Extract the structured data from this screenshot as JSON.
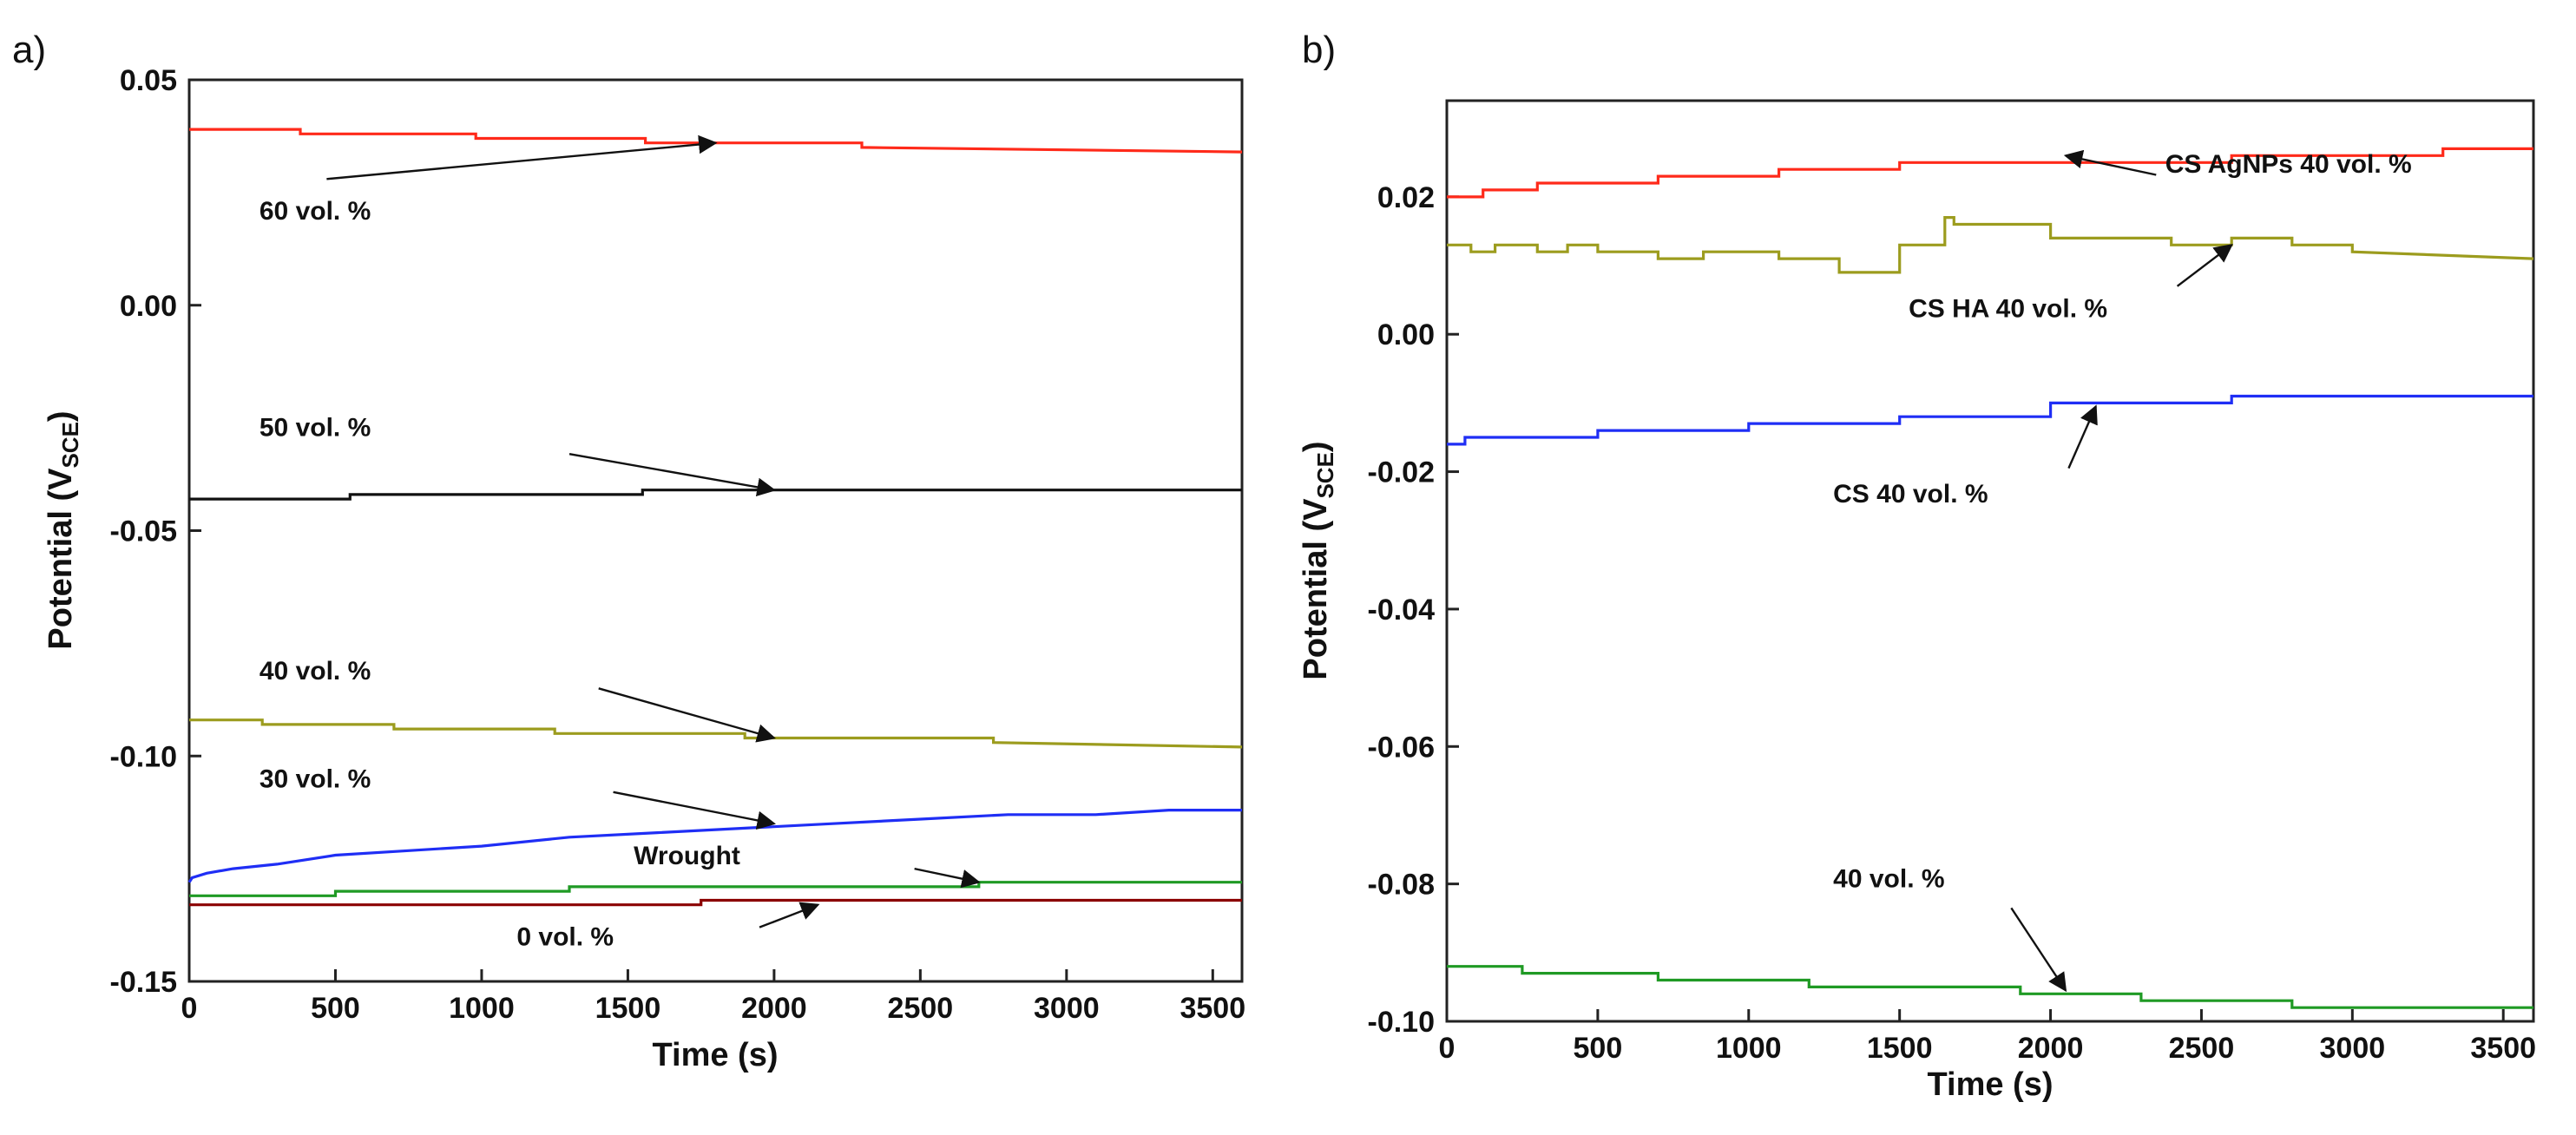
{
  "chart_data": [
    {
      "panel": "a)",
      "type": "line",
      "xlabel": "Time (s)",
      "ylabel": {
        "main": "Potential (V",
        "sub": "SCE",
        "close": ")"
      },
      "xlim": [
        0,
        3600
      ],
      "ylim": [
        -0.15,
        0.05
      ],
      "xticks": [
        {
          "v": 0,
          "label": "0"
        },
        {
          "v": 500,
          "label": "500"
        },
        {
          "v": 1000,
          "label": "1000"
        },
        {
          "v": 1500,
          "label": "1500"
        },
        {
          "v": 2000,
          "label": "2000"
        },
        {
          "v": 2500,
          "label": "2500"
        },
        {
          "v": 3000,
          "label": "3000"
        },
        {
          "v": 3500,
          "label": "3500"
        }
      ],
      "yticks": [
        {
          "v": 0.05,
          "label": "0.05"
        },
        {
          "v": 0.0,
          "label": "0.00"
        },
        {
          "v": -0.05,
          "label": "-0.05"
        },
        {
          "v": -0.1,
          "label": "-0.10"
        },
        {
          "v": -0.15,
          "label": "-0.15"
        }
      ],
      "series": [
        {
          "name": "60 vol. %",
          "color": "#ff2a1a",
          "x": [
            0,
            380,
            380,
            980,
            980,
            1560,
            1560,
            2300,
            2300,
            3600
          ],
          "y": [
            0.039,
            0.039,
            0.038,
            0.038,
            0.037,
            0.037,
            0.036,
            0.036,
            0.035,
            0.034
          ]
        },
        {
          "name": "50 vol. %",
          "color": "#111111",
          "x": [
            0,
            550,
            550,
            1550,
            1550,
            3600
          ],
          "y": [
            -0.043,
            -0.043,
            -0.042,
            -0.042,
            -0.041,
            -0.041
          ]
        },
        {
          "name": "40 vol. %",
          "color": "#9c9c1e",
          "x": [
            0,
            250,
            250,
            700,
            700,
            1250,
            1250,
            1900,
            1900,
            2750,
            2750,
            3600
          ],
          "y": [
            -0.092,
            -0.092,
            -0.093,
            -0.093,
            -0.094,
            -0.094,
            -0.095,
            -0.095,
            -0.096,
            -0.096,
            -0.097,
            -0.098
          ]
        },
        {
          "name": "30 vol. %",
          "color": "#1f2ef5",
          "x": [
            0,
            10,
            60,
            150,
            300,
            500,
            750,
            1000,
            1300,
            1600,
            1900,
            2200,
            2500,
            2800,
            3100,
            3350,
            3600
          ],
          "y": [
            -0.128,
            -0.127,
            -0.126,
            -0.125,
            -0.124,
            -0.122,
            -0.121,
            -0.12,
            -0.118,
            -0.117,
            -0.116,
            -0.115,
            -0.114,
            -0.113,
            -0.113,
            -0.112,
            -0.112
          ]
        },
        {
          "name": "Wrought",
          "color": "#1f9a24",
          "x": [
            0,
            500,
            500,
            1300,
            1300,
            2700,
            2700,
            3600
          ],
          "y": [
            -0.131,
            -0.131,
            -0.13,
            -0.13,
            -0.129,
            -0.129,
            -0.128,
            -0.128
          ]
        },
        {
          "name": "0 vol. %",
          "color": "#8b0000",
          "x": [
            0,
            1750,
            1750,
            3600
          ],
          "y": [
            -0.133,
            -0.133,
            -0.132,
            -0.132
          ]
        }
      ],
      "annotations": [
        {
          "text": "60 vol. %",
          "tx": 240,
          "ty": 0.019,
          "ax": 470,
          "ay": 0.028,
          "hx": 1800,
          "hy": 0.036
        },
        {
          "text": "50 vol. %",
          "tx": 240,
          "ty": -0.029,
          "ax": 1300,
          "ay": -0.033,
          "hx": 2000,
          "hy": -0.041
        },
        {
          "text": "40 vol. %",
          "tx": 240,
          "ty": -0.083,
          "ax": 1400,
          "ay": -0.085,
          "hx": 2000,
          "hy": -0.096
        },
        {
          "text": "30 vol. %",
          "tx": 240,
          "ty": -0.107,
          "ax": 1450,
          "ay": -0.108,
          "hx": 2000,
          "hy": -0.115
        },
        {
          "text": "Wrought",
          "tx": 1520,
          "ty": -0.124,
          "ax": 2480,
          "ay": -0.125,
          "hx": 2700,
          "hy": -0.128
        },
        {
          "text": "0 vol. %",
          "tx": 1120,
          "ty": -0.142,
          "ax": 1950,
          "ay": -0.138,
          "hx": 2150,
          "hy": -0.133
        }
      ]
    },
    {
      "panel": "b)",
      "type": "line",
      "xlabel": "Time (s)",
      "ylabel": {
        "main": "Potential (V",
        "sub": "SCE",
        "close": ")"
      },
      "xlim": [
        0,
        3600
      ],
      "ylim": [
        -0.1,
        0.034
      ],
      "xticks": [
        {
          "v": 0,
          "label": "0"
        },
        {
          "v": 500,
          "label": "500"
        },
        {
          "v": 1000,
          "label": "1000"
        },
        {
          "v": 1500,
          "label": "1500"
        },
        {
          "v": 2000,
          "label": "2000"
        },
        {
          "v": 2500,
          "label": "2500"
        },
        {
          "v": 3000,
          "label": "3000"
        },
        {
          "v": 3500,
          "label": "3500"
        }
      ],
      "yticks": [
        {
          "v": 0.02,
          "label": "0.02"
        },
        {
          "v": 0.0,
          "label": "0.00"
        },
        {
          "v": -0.02,
          "label": "-0.02"
        },
        {
          "v": -0.04,
          "label": "-0.04"
        },
        {
          "v": -0.06,
          "label": "-0.06"
        },
        {
          "v": -0.08,
          "label": "-0.08"
        },
        {
          "v": -0.1,
          "label": "-0.10"
        }
      ],
      "series": [
        {
          "name": "CS AgNPs 40 vol. %",
          "color": "#ff2a1a",
          "x": [
            0,
            120,
            120,
            300,
            300,
            700,
            700,
            1100,
            1100,
            1500,
            1500,
            2600,
            2600,
            3300,
            3300,
            3600
          ],
          "y": [
            0.02,
            0.02,
            0.021,
            0.021,
            0.022,
            0.022,
            0.023,
            0.023,
            0.024,
            0.024,
            0.025,
            0.025,
            0.026,
            0.026,
            0.027,
            0.027
          ]
        },
        {
          "name": "CS HA 40 vol. %",
          "color": "#9c9c1e",
          "x": [
            0,
            80,
            80,
            160,
            160,
            300,
            300,
            400,
            400,
            500,
            500,
            700,
            700,
            850,
            850,
            1100,
            1100,
            1300,
            1300,
            1500,
            1500,
            1650,
            1650,
            1680,
            1680,
            2000,
            2000,
            2400,
            2400,
            2600,
            2600,
            2800,
            2800,
            3000,
            3000,
            3600
          ],
          "y": [
            0.013,
            0.013,
            0.012,
            0.012,
            0.013,
            0.013,
            0.012,
            0.012,
            0.013,
            0.013,
            0.012,
            0.012,
            0.011,
            0.011,
            0.012,
            0.012,
            0.011,
            0.011,
            0.009,
            0.009,
            0.013,
            0.013,
            0.017,
            0.017,
            0.016,
            0.016,
            0.014,
            0.014,
            0.013,
            0.013,
            0.014,
            0.014,
            0.013,
            0.013,
            0.012,
            0.011
          ]
        },
        {
          "name": "CS 40 vol. %",
          "color": "#1f2ef5",
          "x": [
            0,
            60,
            60,
            500,
            500,
            1000,
            1000,
            1500,
            1500,
            2000,
            2000,
            2600,
            2600,
            3600
          ],
          "y": [
            -0.016,
            -0.016,
            -0.015,
            -0.015,
            -0.014,
            -0.014,
            -0.013,
            -0.013,
            -0.012,
            -0.012,
            -0.01,
            -0.01,
            -0.009,
            -0.009
          ]
        },
        {
          "name": "40 vol. %",
          "color": "#1f9a24",
          "x": [
            0,
            250,
            250,
            700,
            700,
            1200,
            1200,
            1900,
            1900,
            2300,
            2300,
            2800,
            2800,
            3600
          ],
          "y": [
            -0.092,
            -0.092,
            -0.093,
            -0.093,
            -0.094,
            -0.094,
            -0.095,
            -0.095,
            -0.096,
            -0.096,
            -0.097,
            -0.097,
            -0.098,
            -0.098
          ]
        }
      ],
      "annotations": [
        {
          "text": "CS AgNPs 40 vol. %",
          "tx": 2380,
          "ty": 0.0235,
          "ax": 2350,
          "ay": 0.0232,
          "hx": 2050,
          "hy": 0.026
        },
        {
          "text": "CS HA 40 vol. %",
          "tx": 1530,
          "ty": 0.0025,
          "ax": 2420,
          "ay": 0.007,
          "hx": 2600,
          "hy": 0.013
        },
        {
          "text": "CS 40 vol. %",
          "tx": 1280,
          "ty": -0.0245,
          "ax": 2060,
          "ay": -0.0195,
          "hx": 2150,
          "hy": -0.0105
        },
        {
          "text": "40 vol. %",
          "tx": 1280,
          "ty": -0.0805,
          "ax": 1870,
          "ay": -0.0835,
          "hx": 2050,
          "hy": -0.0955
        }
      ]
    }
  ]
}
